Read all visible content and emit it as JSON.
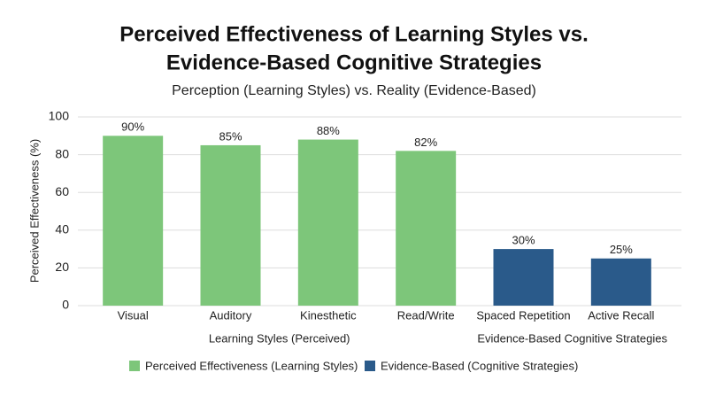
{
  "chart_data": {
    "type": "bar",
    "title": [
      "Perceived Effectiveness of Learning Styles vs.",
      "Evidence-Based Cognitive Strategies"
    ],
    "subtitle": "Perception (Learning Styles) vs. Reality (Evidence-Based)",
    "y_label": "Perceived Effectiveness (%)",
    "categories": [
      "Visual",
      "Auditory",
      "Kinesthetic",
      "Read/Write",
      "Spaced Repetition",
      "Active Recall"
    ],
    "series": [
      {
        "name": "Perceived Effectiveness (Learning Styles)",
        "group": "Learning Styles (Perceived)",
        "color": "#7dc67a",
        "values": [
          90,
          85,
          88,
          82,
          null,
          null
        ],
        "value_labels": [
          "90%",
          "85%",
          "88%",
          "82%",
          null,
          null
        ]
      },
      {
        "name": "Evidence-Based (Cognitive Strategies)",
        "group": "Evidence-Based Cognitive Strategies",
        "color": "#2a5a8a",
        "values": [
          null,
          null,
          null,
          null,
          30,
          25
        ],
        "value_labels": [
          null,
          null,
          null,
          null,
          "30%",
          "25%"
        ]
      }
    ],
    "ylim": [
      0,
      100
    ],
    "yticks": [
      0,
      20,
      40,
      60,
      80,
      100
    ],
    "grid": true,
    "legend": "bottom"
  }
}
